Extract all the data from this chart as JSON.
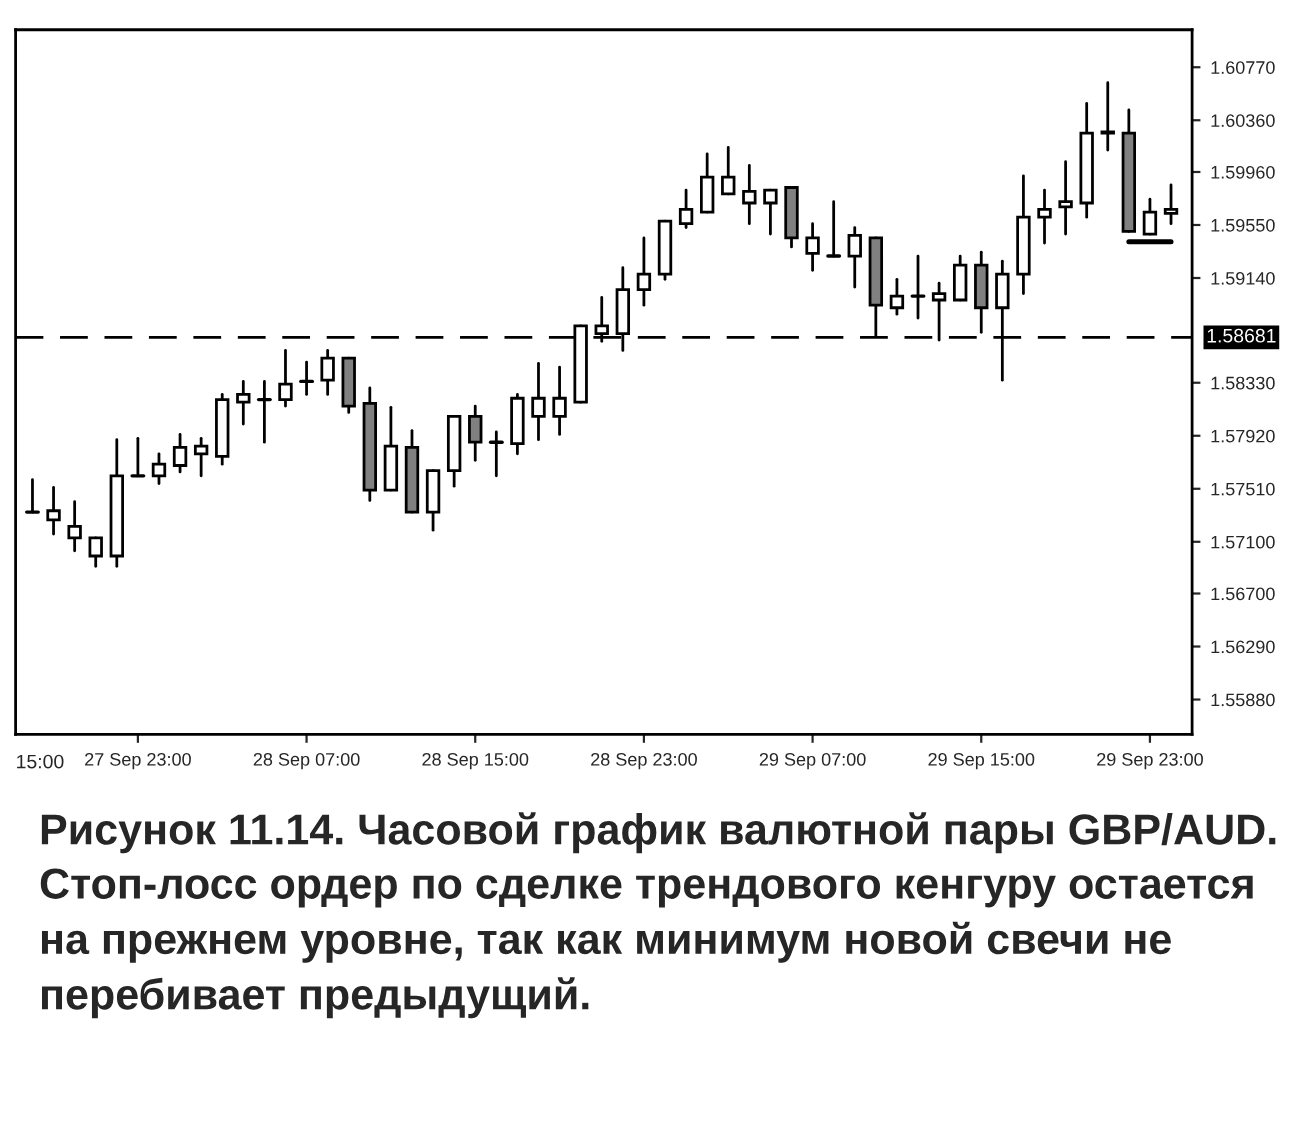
{
  "chart_data": {
    "type": "candlestick",
    "categories": [
      null,
      null,
      null,
      null,
      null,
      "27 Sep 23:00",
      null,
      null,
      null,
      null,
      null,
      null,
      null,
      "28 Sep 07:00",
      null,
      null,
      null,
      null,
      null,
      null,
      null,
      "28 Sep 15:00",
      null,
      null,
      null,
      null,
      null,
      null,
      null,
      "28 Sep 23:00",
      null,
      null,
      null,
      null,
      null,
      null,
      null,
      "29 Sep 07:00",
      null,
      null,
      null,
      null,
      null,
      null,
      null,
      "29 Sep 15:00",
      null,
      null,
      null,
      null,
      null,
      null,
      null,
      "29 Sep 23:00",
      null
    ],
    "ohlc": [
      [
        1.5733,
        1.5758,
        1.5733,
        1.5733
      ],
      [
        1.5727,
        1.5752,
        1.5716,
        1.5734
      ],
      [
        1.5713,
        1.5741,
        1.5703,
        1.5722
      ],
      [
        1.5699,
        1.5713,
        1.5691,
        1.5713
      ],
      [
        1.5699,
        1.5789,
        1.5691,
        1.5761
      ],
      [
        1.5761,
        1.579,
        1.5761,
        1.5761
      ],
      [
        1.5761,
        1.5778,
        1.5755,
        1.577
      ],
      [
        1.5769,
        1.5793,
        1.5764,
        1.5783
      ],
      [
        1.5778,
        1.579,
        1.5761,
        1.5784
      ],
      [
        1.5776,
        1.5824,
        1.577,
        1.582
      ],
      [
        1.5818,
        1.5834,
        1.5801,
        1.5824
      ],
      [
        1.582,
        1.5834,
        1.5787,
        1.582
      ],
      [
        1.582,
        1.5858,
        1.5815,
        1.5832
      ],
      [
        1.5834,
        1.5849,
        1.5824,
        1.5834
      ],
      [
        1.5835,
        1.5858,
        1.5824,
        1.5852
      ],
      [
        1.5852,
        1.5852,
        1.581,
        1.5815
      ],
      [
        1.5817,
        1.5829,
        1.5742,
        1.575
      ],
      [
        1.575,
        1.5814,
        1.575,
        1.5784
      ],
      [
        1.5783,
        1.5796,
        1.5733,
        1.5733
      ],
      [
        1.5733,
        1.5765,
        1.5719,
        1.5765
      ],
      [
        1.5765,
        1.5807,
        1.5753,
        1.5807
      ],
      [
        1.5807,
        1.5815,
        1.5773,
        1.5787
      ],
      [
        1.5787,
        1.5795,
        1.5761,
        1.5787
      ],
      [
        1.5786,
        1.5824,
        1.5778,
        1.5821
      ],
      [
        1.5807,
        1.5848,
        1.5789,
        1.5821
      ],
      [
        1.5807,
        1.5845,
        1.5793,
        1.5821
      ],
      [
        1.5818,
        1.5877,
        1.5818,
        1.5877
      ],
      [
        1.5871,
        1.5899,
        1.5865,
        1.5877
      ],
      [
        1.5871,
        1.5922,
        1.5858,
        1.5905
      ],
      [
        1.5905,
        1.5945,
        1.5893,
        1.5917
      ],
      [
        1.5917,
        1.5958,
        1.5913,
        1.5958
      ],
      [
        1.5956,
        1.5982,
        1.5953,
        1.5967
      ],
      [
        1.5965,
        1.601,
        1.5965,
        1.5992
      ],
      [
        1.5979,
        1.6015,
        1.5979,
        1.5992
      ],
      [
        1.5972,
        1.6001,
        1.5956,
        1.5981
      ],
      [
        1.5972,
        1.5982,
        1.5948,
        1.5982
      ],
      [
        1.5984,
        1.5984,
        1.5938,
        1.5945
      ],
      [
        1.5933,
        1.5956,
        1.592,
        1.5945
      ],
      [
        1.5931,
        1.5973,
        1.5931,
        1.5931
      ],
      [
        1.5931,
        1.5953,
        1.5907,
        1.5947
      ],
      [
        1.5945,
        1.5945,
        1.5869,
        1.5893
      ],
      [
        1.5891,
        1.5913,
        1.5886,
        1.59
      ],
      [
        1.59,
        1.5931,
        1.5883,
        1.59
      ],
      [
        1.5897,
        1.591,
        1.5866,
        1.5902
      ],
      [
        1.5897,
        1.5931,
        1.5897,
        1.5924
      ],
      [
        1.5924,
        1.5934,
        1.5872,
        1.5891
      ],
      [
        1.5891,
        1.5927,
        1.5835,
        1.5917
      ],
      [
        1.5917,
        1.5993,
        1.5902,
        1.5961
      ],
      [
        1.5961,
        1.5982,
        1.5941,
        1.5967
      ],
      [
        1.5969,
        1.6004,
        1.5948,
        1.5973
      ],
      [
        1.5972,
        1.6049,
        1.5961,
        1.6026
      ],
      [
        1.6026,
        1.6065,
        1.6013,
        1.6027
      ],
      [
        1.6026,
        1.6044,
        1.595,
        1.595
      ],
      [
        1.5948,
        1.5975,
        1.5948,
        1.5965
      ],
      [
        1.5964,
        1.5986,
        1.5956,
        1.5967
      ]
    ],
    "colors": [
      "#000000",
      "#ffffff",
      "#ffffff",
      "#ffffff",
      "#ffffff",
      "#000000",
      "#ffffff",
      "#ffffff",
      "#ffffff",
      "#ffffff",
      "#ffffff",
      "#000000",
      "#ffffff",
      "#000000",
      "#ffffff",
      "#808080",
      "#808080",
      "#ffffff",
      "#808080",
      "#ffffff",
      "#ffffff",
      "#808080",
      "#000000",
      "#ffffff",
      "#ffffff",
      "#ffffff",
      "#ffffff",
      "#ffffff",
      "#ffffff",
      "#ffffff",
      "#ffffff",
      "#ffffff",
      "#ffffff",
      "#ffffff",
      "#ffffff",
      "#ffffff",
      "#808080",
      "#ffffff",
      "#000000",
      "#ffffff",
      "#808080",
      "#ffffff",
      "#000000",
      "#ffffff",
      "#ffffff",
      "#808080",
      "#ffffff",
      "#ffffff",
      "#ffffff",
      "#ffffff",
      "#ffffff",
      "#ffffff",
      "#808080",
      "#ffffff",
      "#ffffff"
    ],
    "series": [
      {
        "type": "line",
        "color": "#000000",
        "values": [
          null,
          null,
          null,
          null,
          null,
          null,
          null,
          null,
          null,
          null,
          null,
          null,
          null,
          null,
          null,
          null,
          null,
          null,
          null,
          null,
          null,
          null,
          null,
          null,
          null,
          null,
          null,
          null,
          null,
          null,
          null,
          null,
          null,
          null,
          null,
          null,
          null,
          null,
          null,
          null,
          null,
          null,
          null,
          null,
          null,
          null,
          null,
          null,
          null,
          null,
          null,
          null,
          1.5942,
          1.5942,
          1.5942
        ]
      }
    ],
    "ylim": [
      1.5561,
      1.6106
    ],
    "yticks": [
      {
        "value": 1.5588,
        "label": "1.55880"
      },
      {
        "value": 1.5629,
        "label": "1.56290"
      },
      {
        "value": 1.567,
        "label": "1.56700"
      },
      {
        "value": 1.571,
        "label": "1.57100"
      },
      {
        "value": 1.5751,
        "label": "1.57510"
      },
      {
        "value": 1.5792,
        "label": "1.57920"
      },
      {
        "value": 1.5833,
        "label": "1.58330"
      },
      {
        "value": 1.5914,
        "label": "1.59140"
      },
      {
        "value": 1.5955,
        "label": "1.59550"
      },
      {
        "value": 1.5996,
        "label": "1.59960"
      },
      {
        "value": 1.6036,
        "label": "1.60360"
      },
      {
        "value": 1.6077,
        "label": "1.60770"
      }
    ],
    "ref_lines": [
      {
        "axis": "y",
        "value": 1.58681,
        "label": "1.58681",
        "color": "#000000",
        "line_style": "dashed"
      }
    ],
    "grid": false,
    "annotations": [
      "15:00",
      "Рисунок 11.14. Часовой график валютной пары GBP/AUD. Стоп-лосс ордер по сделке трендового кенгуру остается на прежнем уровне, так как минимум новой свечи не перебивает предыдущий."
    ]
  }
}
